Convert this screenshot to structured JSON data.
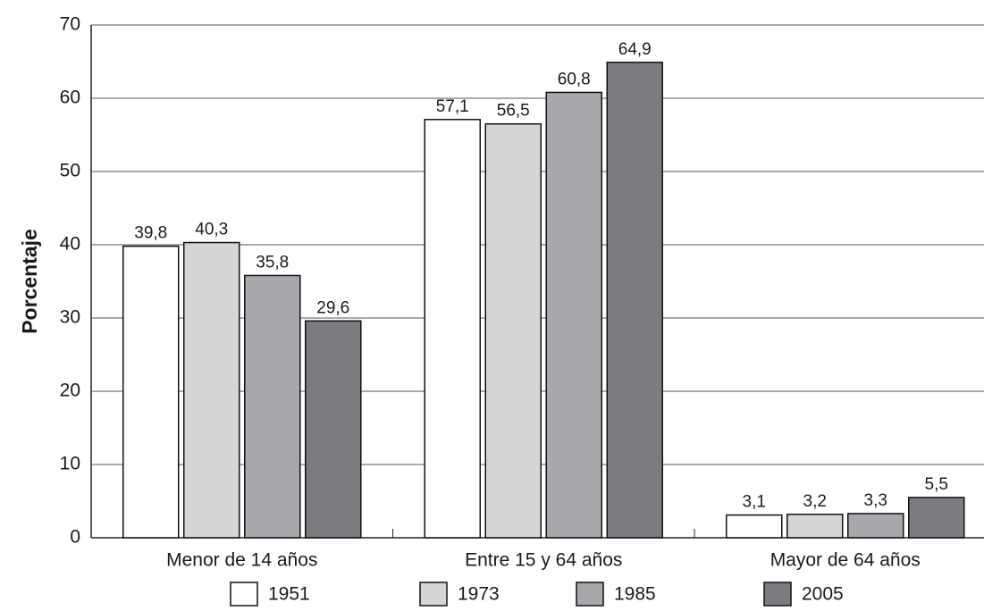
{
  "chart_data": {
    "type": "bar",
    "y_label": "Porcentaje",
    "categories": [
      "Menor de 14 años",
      "Entre 15 y 64 años",
      "Mayor de 64 años"
    ],
    "series": [
      {
        "name": "1951",
        "color": "#ffffff",
        "values": [
          39.8,
          57.1,
          3.1
        ],
        "value_labels": [
          "39,8",
          "57,1",
          "3,1"
        ]
      },
      {
        "name": "1973",
        "color": "#d4d5d7",
        "values": [
          40.3,
          56.5,
          3.2
        ],
        "value_labels": [
          "40,3",
          "56,5",
          "3,2"
        ]
      },
      {
        "name": "1985",
        "color": "#a7a8ab",
        "values": [
          35.8,
          60.8,
          3.3
        ],
        "value_labels": [
          "35,8",
          "60,8",
          "3,3"
        ]
      },
      {
        "name": "2005",
        "color": "#7b7c80",
        "values": [
          29.6,
          64.9,
          5.5
        ],
        "value_labels": [
          "29,6",
          "64,9",
          "5,5"
        ]
      }
    ],
    "ylim": [
      0,
      70
    ],
    "yticks": [
      0,
      10,
      20,
      30,
      40,
      50,
      60,
      70
    ],
    "grid": true,
    "legend": "bottom"
  }
}
